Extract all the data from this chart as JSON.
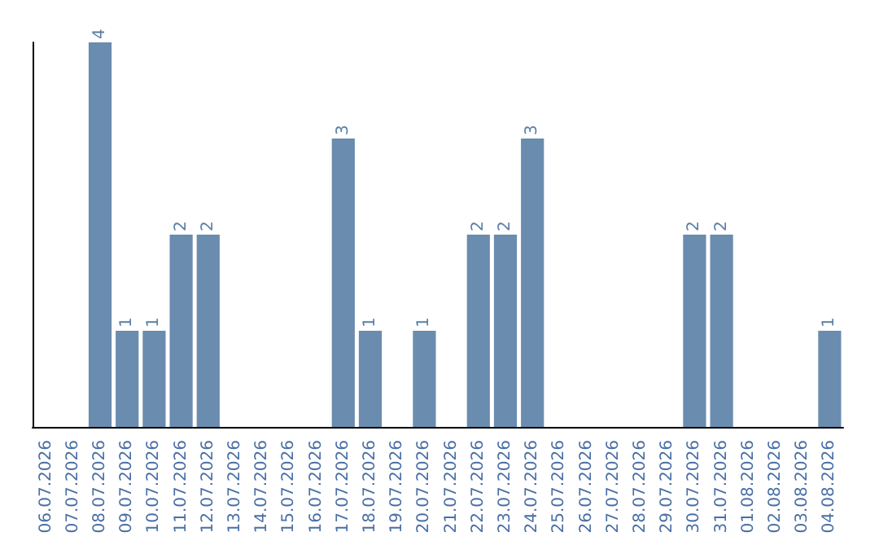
{
  "chart_data": {
    "type": "bar",
    "categories": [
      "06.07.2026",
      "07.07.2026",
      "08.07.2026",
      "09.07.2026",
      "10.07.2026",
      "11.07.2026",
      "12.07.2026",
      "13.07.2026",
      "14.07.2026",
      "15.07.2026",
      "16.07.2026",
      "17.07.2026",
      "18.07.2026",
      "19.07.2026",
      "20.07.2026",
      "21.07.2026",
      "22.07.2026",
      "23.07.2026",
      "24.07.2026",
      "25.07.2026",
      "26.07.2026",
      "27.07.2026",
      "28.07.2026",
      "29.07.2026",
      "30.07.2026",
      "31.07.2026",
      "01.08.2026",
      "02.08.2026",
      "03.08.2026",
      "04.08.2026"
    ],
    "values": [
      0,
      0,
      4,
      1,
      1,
      2,
      2,
      0,
      0,
      0,
      0,
      3,
      1,
      0,
      1,
      0,
      2,
      2,
      3,
      0,
      0,
      0,
      0,
      0,
      2,
      2,
      0,
      0,
      0,
      1
    ],
    "value_labels": [
      null,
      null,
      "4",
      "1",
      "1",
      "2",
      "2",
      null,
      null,
      null,
      null,
      "3",
      "1",
      null,
      "1",
      null,
      "2",
      "2",
      "3",
      null,
      null,
      null,
      null,
      null,
      "2",
      "2",
      null,
      null,
      null,
      "1"
    ],
    "color": "#6a8caf",
    "tick_labels": "x"
  }
}
